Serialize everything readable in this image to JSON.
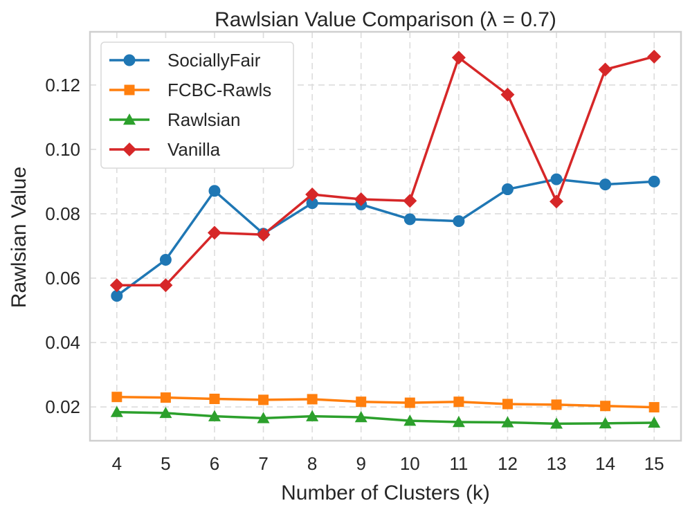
{
  "chart_data": {
    "type": "line",
    "title": "Rawlsian Value Comparison (λ = 0.7)",
    "xlabel": "Number of Clusters (k)",
    "ylabel": "Rawlsian Value",
    "x": [
      4,
      5,
      6,
      7,
      8,
      9,
      10,
      11,
      12,
      13,
      14,
      15
    ],
    "x_tick_labels": [
      "4",
      "5",
      "6",
      "7",
      "8",
      "9",
      "10",
      "11",
      "12",
      "13",
      "14",
      "15"
    ],
    "xlim": [
      3.45,
      15.55
    ],
    "ylim": [
      0.0095,
      0.1365
    ],
    "y_ticks": [
      0.02,
      0.04,
      0.06,
      0.08,
      0.1,
      0.12
    ],
    "y_tick_labels": [
      "0.02",
      "0.04",
      "0.06",
      "0.08",
      "0.10",
      "0.12"
    ],
    "grid": true,
    "legend_position": "top-left",
    "series": [
      {
        "name": "SociallyFair",
        "color": "#1f77b4",
        "marker": "circle",
        "values": [
          0.0545,
          0.0657,
          0.0871,
          0.0738,
          0.0833,
          0.0829,
          0.0783,
          0.0777,
          0.0876,
          0.0907,
          0.0891,
          0.09
        ]
      },
      {
        "name": "FCBC-Rawls",
        "color": "#ff7f0e",
        "marker": "square",
        "values": [
          0.0231,
          0.0229,
          0.0225,
          0.0222,
          0.0224,
          0.0216,
          0.0213,
          0.0216,
          0.0209,
          0.0207,
          0.0203,
          0.0199
        ]
      },
      {
        "name": "Rawlsian",
        "color": "#2ca02c",
        "marker": "triangle",
        "values": [
          0.0184,
          0.0181,
          0.0171,
          0.0165,
          0.0171,
          0.0168,
          0.0157,
          0.0153,
          0.0152,
          0.0148,
          0.0149,
          0.0151
        ]
      },
      {
        "name": "Vanilla",
        "color": "#d62728",
        "marker": "diamond",
        "values": [
          0.0578,
          0.0578,
          0.0741,
          0.0735,
          0.086,
          0.0845,
          0.084,
          0.1285,
          0.117,
          0.0838,
          0.1248,
          0.1288
        ]
      }
    ]
  }
}
